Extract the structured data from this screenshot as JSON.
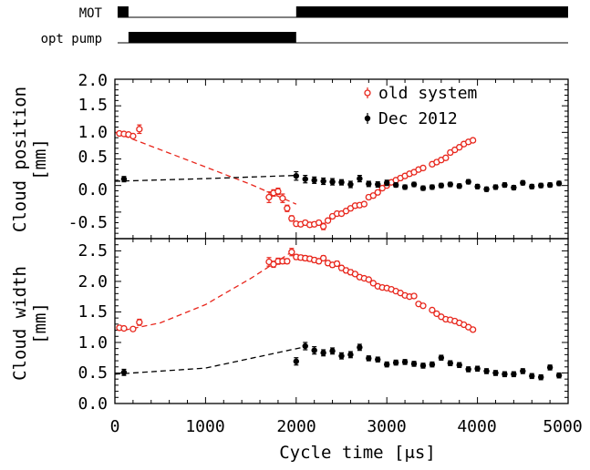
{
  "chart_data": [
    {
      "type": "timing",
      "x_range": [
        0,
        5000
      ],
      "rows": [
        {
          "label": "MOT",
          "on_intervals": [
            [
              30,
              150
            ],
            [
              2000,
              5000
            ]
          ]
        },
        {
          "label": "opt pump",
          "on_intervals": [
            [
              150,
              2000
            ]
          ]
        }
      ]
    },
    {
      "type": "scatter",
      "xlabel": "",
      "ylabel": "Cloud position\n[mm]",
      "ylim": [
        -1.0,
        2.0
      ],
      "xlim": [
        0,
        5000
      ],
      "y_ticks": [
        "-0.5",
        "0.0",
        "0.5",
        "1.0",
        "1.5",
        "2.0"
      ],
      "legend": {
        "position": "top-right"
      },
      "series": [
        {
          "name": "old system",
          "color": "#e8261c",
          "marker": "open-circle",
          "x": [
            50,
            100,
            150,
            200,
            270,
            1700,
            1750,
            1800,
            1850,
            1900,
            1950,
            2000,
            2050,
            2100,
            2150,
            2200,
            2250,
            2300,
            2350,
            2400,
            2450,
            2500,
            2550,
            2600,
            2650,
            2700,
            2750,
            2800,
            2850,
            2900,
            2950,
            3000,
            3050,
            3100,
            3150,
            3200,
            3250,
            3300,
            3350,
            3400,
            3500,
            3550,
            3600,
            3650,
            3700,
            3750,
            3800,
            3850,
            3900,
            3950
          ],
          "y": [
            0.98,
            0.97,
            0.96,
            0.93,
            1.06,
            -0.22,
            -0.14,
            -0.11,
            -0.24,
            -0.43,
            -0.62,
            -0.72,
            -0.73,
            -0.7,
            -0.74,
            -0.73,
            -0.7,
            -0.77,
            -0.66,
            -0.58,
            -0.53,
            -0.53,
            -0.48,
            -0.43,
            -0.38,
            -0.37,
            -0.35,
            -0.22,
            -0.19,
            -0.13,
            -0.05,
            0.0,
            0.06,
            0.1,
            0.14,
            0.18,
            0.22,
            0.25,
            0.3,
            0.33,
            0.4,
            0.44,
            0.48,
            0.52,
            0.62,
            0.67,
            0.72,
            0.78,
            0.82,
            0.85
          ],
          "err": [
            0.03,
            0.03,
            0.03,
            0.03,
            0.08,
            0.1,
            0.06,
            0.06,
            0.08,
            0.06,
            0.05,
            0.04,
            0.04,
            0.04,
            0.04,
            0.04,
            0.04,
            0.06,
            0.04,
            0.04,
            0.04,
            0.04,
            0.04,
            0.04,
            0.04,
            0.04,
            0.04,
            0.04,
            0.04,
            0.04,
            0.04,
            0.04,
            0.04,
            0.04,
            0.04,
            0.04,
            0.04,
            0.04,
            0.04,
            0.04,
            0.04,
            0.04,
            0.04,
            0.04,
            0.04,
            0.04,
            0.04,
            0.04,
            0.04,
            0.04
          ],
          "fit": {
            "x": [
              0,
              1000,
              1500,
              2000
            ],
            "y": [
              1.0,
              0.35,
              0.02,
              -0.35
            ]
          }
        },
        {
          "name": "Dec 2012",
          "color": "#000000",
          "marker": "filled-circle",
          "x": [
            100,
            2000,
            2100,
            2200,
            2300,
            2400,
            2500,
            2600,
            2700,
            2800,
            2900,
            3000,
            3100,
            3200,
            3300,
            3400,
            3500,
            3600,
            3700,
            3800,
            3900,
            4000,
            4100,
            4200,
            4300,
            4400,
            4500,
            4600,
            4700,
            4800,
            4900
          ],
          "y": [
            0.12,
            0.18,
            0.12,
            0.1,
            0.08,
            0.07,
            0.06,
            0.02,
            0.13,
            0.03,
            0.02,
            0.05,
            0.01,
            -0.03,
            0.02,
            -0.05,
            -0.03,
            0.0,
            0.02,
            -0.01,
            0.07,
            -0.02,
            -0.07,
            -0.03,
            0.01,
            -0.04,
            0.05,
            -0.02,
            0.0,
            0.01,
            0.04
          ],
          "err": [
            0.05,
            0.08,
            0.07,
            0.06,
            0.06,
            0.06,
            0.05,
            0.06,
            0.06,
            0.05,
            0.05,
            0.05,
            0.04,
            0.04,
            0.04,
            0.04,
            0.04,
            0.04,
            0.04,
            0.04,
            0.04,
            0.04,
            0.04,
            0.04,
            0.04,
            0.04,
            0.04,
            0.04,
            0.04,
            0.04,
            0.04
          ],
          "fit": {
            "x": [
              0,
              1000,
              2000
            ],
            "y": [
              0.08,
              0.13,
              0.19
            ]
          }
        }
      ]
    },
    {
      "type": "scatter",
      "xlabel": "Cycle time [μs]",
      "ylabel": "Cloud width\n[mm]",
      "ylim": [
        0.0,
        2.7
      ],
      "xlim": [
        0,
        5000
      ],
      "x_ticks": [
        "0",
        "1000",
        "2000",
        "3000",
        "4000",
        "5000"
      ],
      "y_ticks": [
        "0.0",
        "0.5",
        "1.0",
        "1.5",
        "2.0",
        "2.5"
      ],
      "series": [
        {
          "name": "old system",
          "color": "#e8261c",
          "marker": "open-circle",
          "x": [
            50,
            100,
            200,
            270,
            1700,
            1750,
            1800,
            1850,
            1900,
            1950,
            2000,
            2050,
            2100,
            2150,
            2200,
            2250,
            2300,
            2350,
            2400,
            2450,
            2500,
            2550,
            2600,
            2650,
            2700,
            2750,
            2800,
            2850,
            2900,
            2950,
            3000,
            3050,
            3100,
            3150,
            3200,
            3250,
            3300,
            3350,
            3400,
            3500,
            3550,
            3600,
            3650,
            3700,
            3750,
            3800,
            3850,
            3900,
            3950
          ],
          "y": [
            1.24,
            1.23,
            1.22,
            1.33,
            2.32,
            2.28,
            2.33,
            2.33,
            2.33,
            2.48,
            2.4,
            2.39,
            2.38,
            2.37,
            2.35,
            2.33,
            2.38,
            2.3,
            2.27,
            2.29,
            2.22,
            2.18,
            2.15,
            2.12,
            2.07,
            2.05,
            2.03,
            1.97,
            1.92,
            1.9,
            1.89,
            1.87,
            1.84,
            1.81,
            1.77,
            1.75,
            1.76,
            1.63,
            1.6,
            1.53,
            1.47,
            1.42,
            1.38,
            1.37,
            1.35,
            1.32,
            1.29,
            1.25,
            1.21
          ],
          "err": [
            0.03,
            0.03,
            0.03,
            0.05,
            0.07,
            0.05,
            0.05,
            0.04,
            0.04,
            0.06,
            0.04,
            0.04,
            0.04,
            0.04,
            0.04,
            0.04,
            0.04,
            0.04,
            0.04,
            0.04,
            0.04,
            0.04,
            0.04,
            0.03,
            0.03,
            0.03,
            0.03,
            0.03,
            0.03,
            0.03,
            0.03,
            0.03,
            0.03,
            0.03,
            0.03,
            0.03,
            0.03,
            0.03,
            0.03,
            0.03,
            0.03,
            0.03,
            0.03,
            0.03,
            0.03,
            0.03,
            0.03,
            0.03,
            0.03
          ],
          "fit": {
            "x": [
              100,
              500,
              1000,
              1500,
              1950
            ],
            "y": [
              1.2,
              1.32,
              1.62,
              2.05,
              2.48
            ]
          }
        },
        {
          "name": "Dec 2012",
          "color": "#000000",
          "marker": "filled-circle",
          "x": [
            100,
            2000,
            2100,
            2200,
            2300,
            2400,
            2500,
            2600,
            2700,
            2800,
            2900,
            3000,
            3100,
            3200,
            3300,
            3400,
            3500,
            3600,
            3700,
            3800,
            3900,
            4000,
            4100,
            4200,
            4300,
            4400,
            4500,
            4600,
            4700,
            4800,
            4900
          ],
          "y": [
            0.51,
            0.69,
            0.94,
            0.87,
            0.83,
            0.86,
            0.78,
            0.8,
            0.92,
            0.74,
            0.72,
            0.64,
            0.67,
            0.68,
            0.65,
            0.62,
            0.64,
            0.75,
            0.66,
            0.63,
            0.56,
            0.57,
            0.53,
            0.5,
            0.48,
            0.48,
            0.53,
            0.45,
            0.43,
            0.59,
            0.46
          ],
          "err": [
            0.05,
            0.06,
            0.06,
            0.06,
            0.05,
            0.05,
            0.05,
            0.05,
            0.05,
            0.04,
            0.04,
            0.04,
            0.04,
            0.04,
            0.04,
            0.04,
            0.04,
            0.04,
            0.04,
            0.04,
            0.04,
            0.04,
            0.04,
            0.04,
            0.04,
            0.04,
            0.04,
            0.04,
            0.04,
            0.04,
            0.04
          ],
          "fit": {
            "x": [
              0,
              1000,
              2100
            ],
            "y": [
              0.48,
              0.58,
              0.93
            ]
          }
        }
      ]
    }
  ]
}
